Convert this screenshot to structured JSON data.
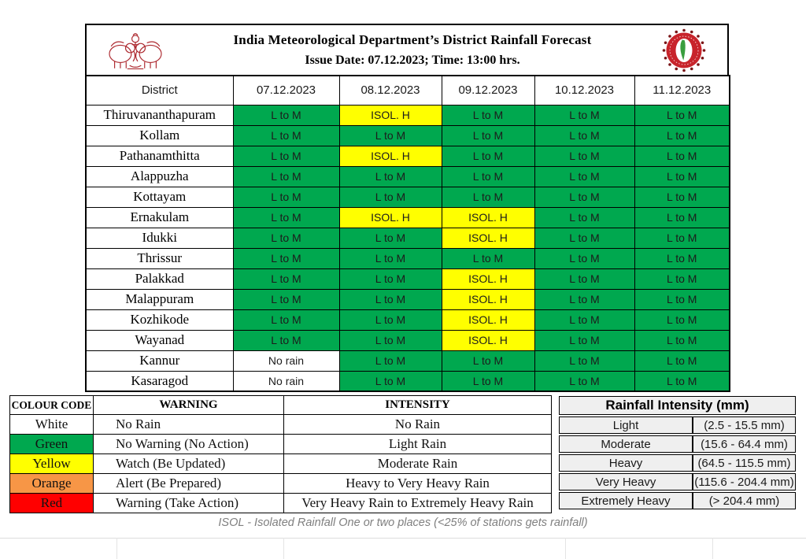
{
  "header": {
    "title": "India Meteorological Department’s District Rainfall Forecast",
    "issue_line": "Issue Date: 07.12.2023; Time: 13:00 hrs.",
    "left_logo": "kerala-government-emblem",
    "right_logo": "imd-logo"
  },
  "forecast_table": {
    "columns": [
      "District",
      "07.12.2023",
      "08.12.2023",
      "09.12.2023",
      "10.12.2023",
      "11.12.2023"
    ],
    "value_styles": {
      "L to M": "green",
      "ISOL. H": "yellow",
      "No rain": "white"
    },
    "rows": [
      {
        "district": "Thiruvananthapuram",
        "values": [
          "L to M",
          "ISOL. H",
          "L to M",
          "L to M",
          "L to M"
        ]
      },
      {
        "district": "Kollam",
        "values": [
          "L to M",
          "L to M",
          "L to M",
          "L to M",
          "L to M"
        ]
      },
      {
        "district": "Pathanamthitta",
        "values": [
          "L to M",
          "ISOL. H",
          "L to M",
          "L to M",
          "L to M"
        ]
      },
      {
        "district": "Alappuzha",
        "values": [
          "L to M",
          "L to M",
          "L to M",
          "L to M",
          "L to M"
        ]
      },
      {
        "district": "Kottayam",
        "values": [
          "L to M",
          "L to M",
          "L to M",
          "L to M",
          "L to M"
        ]
      },
      {
        "district": "Ernakulam",
        "values": [
          "L to M",
          "ISOL. H",
          "ISOL. H",
          "L to M",
          "L to M"
        ]
      },
      {
        "district": "Idukki",
        "values": [
          "L to M",
          "L to M",
          "ISOL. H",
          "L to M",
          "L to M"
        ]
      },
      {
        "district": "Thrissur",
        "values": [
          "L to M",
          "L to M",
          "L to M",
          "L to M",
          "L to M"
        ]
      },
      {
        "district": "Palakkad",
        "values": [
          "L to M",
          "L to M",
          "ISOL. H",
          "L to M",
          "L to M"
        ]
      },
      {
        "district": "Malappuram",
        "values": [
          "L to M",
          "L to M",
          "ISOL. H",
          "L to M",
          "L to M"
        ]
      },
      {
        "district": "Kozhikode",
        "values": [
          "L to M",
          "L to M",
          "ISOL. H",
          "L to M",
          "L to M"
        ]
      },
      {
        "district": "Wayanad",
        "values": [
          "L to M",
          "L to M",
          "ISOL. H",
          "L to M",
          "L to M"
        ]
      },
      {
        "district": "Kannur",
        "values": [
          "No rain",
          "L to M",
          "L to M",
          "L to M",
          "L to M"
        ]
      },
      {
        "district": "Kasaragod",
        "values": [
          "No rain",
          "L to M",
          "L to M",
          "L to M",
          "L to M"
        ]
      }
    ]
  },
  "legend_table": {
    "columns": [
      "COLOUR CODE",
      "WARNING",
      "INTENSITY"
    ],
    "rows": [
      {
        "code": "White",
        "color": "#FFFFFF",
        "warning": "No Rain",
        "intensity": "No Rain"
      },
      {
        "code": "Green",
        "color": "#00A84F",
        "warning": "No Warning (No Action)",
        "intensity": "Light Rain"
      },
      {
        "code": "Yellow",
        "color": "#FFFF00",
        "warning": "Watch (Be Updated)",
        "intensity": "Moderate Rain"
      },
      {
        "code": "Orange",
        "color": "#F79646",
        "warning": "Alert (Be Prepared)",
        "intensity": "Heavy to Very Heavy Rain"
      },
      {
        "code": "Red",
        "color": "#FF0000",
        "warning": "Warning (Take Action)",
        "intensity": "Very Heavy Rain to Extremely Heavy Rain"
      }
    ]
  },
  "intensity_table": {
    "title": "Rainfall Intensity (mm)",
    "rows": [
      {
        "label": "Light",
        "range": "(2.5 - 15.5 mm)"
      },
      {
        "label": "Moderate",
        "range": "(15.6 - 64.4 mm)"
      },
      {
        "label": "Heavy",
        "range": "(64.5 - 115.5 mm)"
      },
      {
        "label": "Very Heavy",
        "range": "(115.6 - 204.4 mm)"
      },
      {
        "label": "Extremely Heavy",
        "range": "(> 204.4 mm)"
      }
    ]
  },
  "footnote": "ISOL - Isolated Rainfall One or two places (<25% of stations  gets rainfall)",
  "colors": {
    "green": "#00A84F",
    "yellow": "#FFFF00",
    "orange": "#F79646",
    "red": "#FF0000",
    "white": "#FFFFFF",
    "intensity_cell_gray": "#EFEFEF"
  }
}
